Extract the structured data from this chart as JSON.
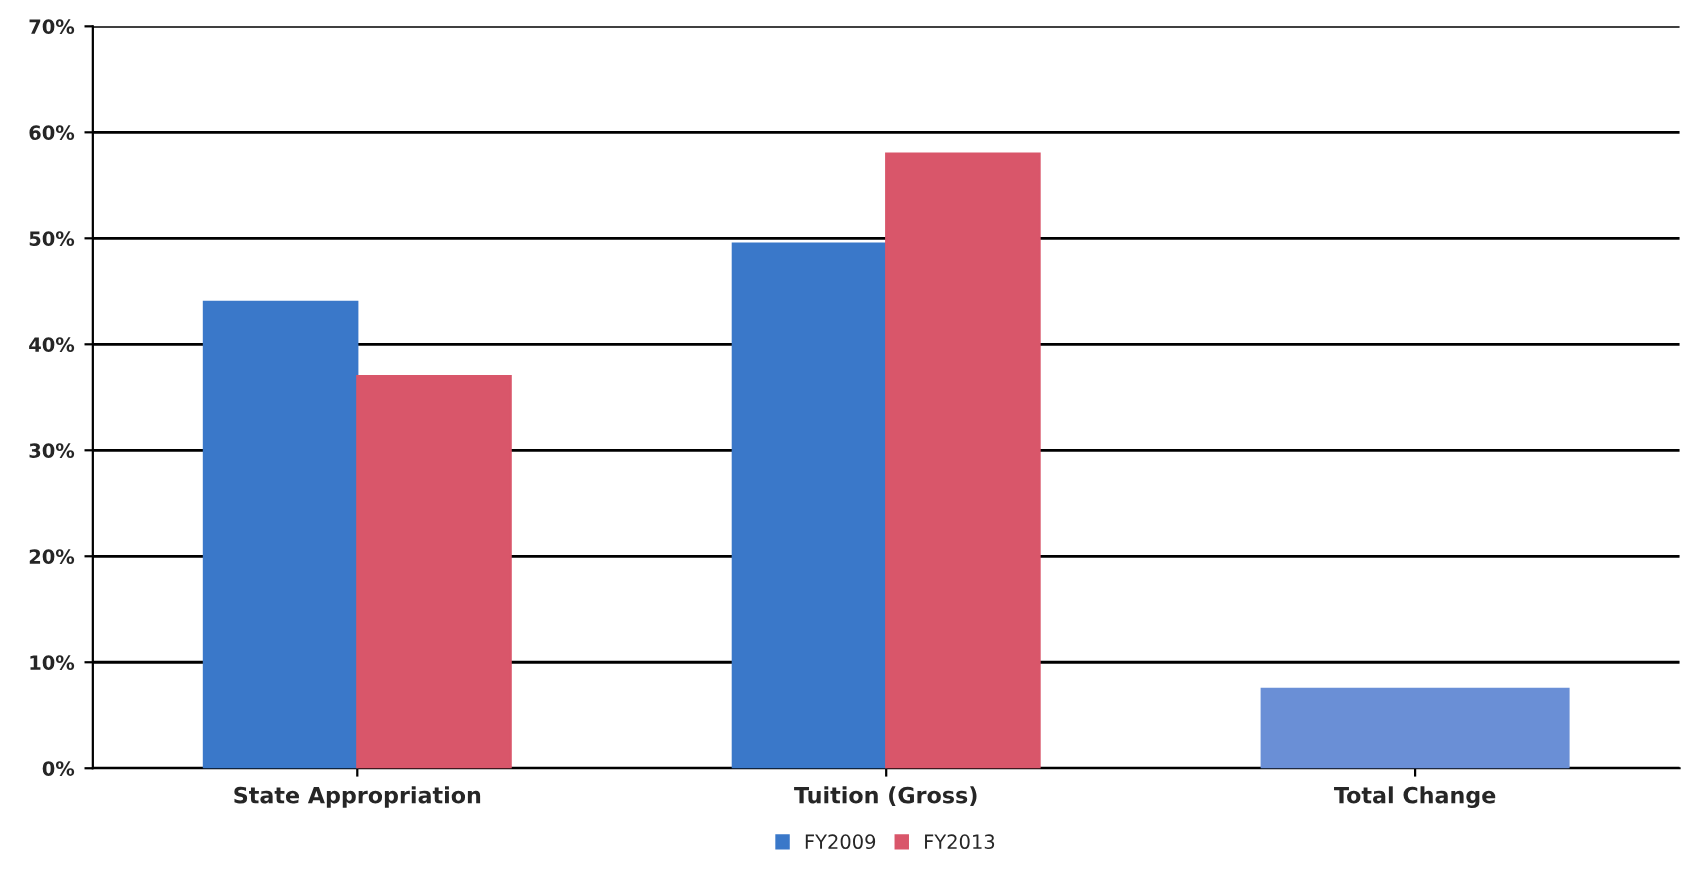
{
  "chart_data": {
    "type": "bar",
    "categories": [
      "State Appropriation",
      "Tuition (Gross)",
      "Total Change"
    ],
    "series": [
      {
        "name": "FY2009",
        "color": "#3a78c9",
        "values": [
          44,
          49.5,
          null
        ]
      },
      {
        "name": "FY2013",
        "color": "#d9566a",
        "values": [
          37,
          58,
          null
        ]
      },
      {
        "color": "#6a8fd6",
        "values": [
          null,
          null,
          7.5
        ]
      }
    ],
    "ylim": [
      0,
      70
    ],
    "yticks": [
      {
        "value": 0,
        "label": "0%"
      },
      {
        "value": 10,
        "label": "10%"
      },
      {
        "value": 20,
        "label": "20%"
      },
      {
        "value": 30,
        "label": "30%"
      },
      {
        "value": 40,
        "label": "40%"
      },
      {
        "value": 50,
        "label": "50%"
      },
      {
        "value": 60,
        "label": "60%"
      },
      {
        "value": 70,
        "label": "70%"
      }
    ],
    "grid": "y",
    "legend": "bottom"
  }
}
